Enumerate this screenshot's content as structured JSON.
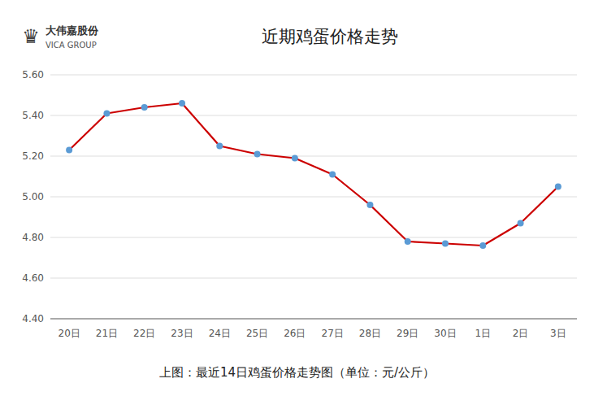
{
  "chart_data": {
    "type": "line",
    "title": "近期鸡蛋价格走势",
    "caption": "上图：最近14日鸡蛋价格走势图（单位：元/公斤）",
    "annotations": [
      "♛",
      "大伟嘉股份",
      "VICA GROUP"
    ],
    "categories": [
      "20日",
      "21日",
      "22日",
      "23日",
      "24日",
      "25日",
      "26日",
      "27日",
      "28日",
      "29日",
      "30日",
      "1日",
      "2日",
      "3日"
    ],
    "values": [
      5.23,
      5.41,
      5.44,
      5.46,
      5.25,
      5.21,
      5.19,
      5.11,
      4.96,
      4.78,
      4.77,
      4.76,
      4.87,
      5.05
    ],
    "color": "#cc0000",
    "colors": [
      "#5b9bd5",
      "#5b9bd5",
      "#5b9bd5",
      "#5b9bd5",
      "#5b9bd5",
      "#5b9bd5",
      "#5b9bd5",
      "#5b9bd5",
      "#5b9bd5",
      "#5b9bd5",
      "#5b9bd5",
      "#5b9bd5",
      "#5b9bd5",
      "#5b9bd5"
    ],
    "marker": "circle",
    "ylim": [
      4.4,
      5.6
    ],
    "yticks": [
      {
        "value": 4.4,
        "label": "4.40"
      },
      {
        "value": 4.6,
        "label": "4.60"
      },
      {
        "value": 4.8,
        "label": "4.80"
      },
      {
        "value": 5.0,
        "label": "5.00"
      },
      {
        "value": 5.2,
        "label": "5.20"
      },
      {
        "value": 5.4,
        "label": "5.40"
      },
      {
        "value": 5.6,
        "label": "5.60"
      }
    ],
    "grid": true
  }
}
